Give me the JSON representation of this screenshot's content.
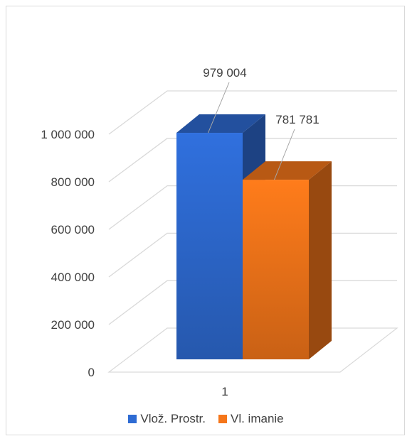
{
  "chart_data": {
    "type": "bar",
    "style": "3d-clustered-column",
    "categories": [
      "1"
    ],
    "series": [
      {
        "name": "Vlož. Prostr.",
        "values": [
          979004
        ],
        "label": "979 004",
        "color": "#2E6BD3"
      },
      {
        "name": "Vl. imanie",
        "values": [
          781781
        ],
        "label": "781 781",
        "color": "#F5761A"
      }
    ],
    "ylim": [
      0,
      1000000
    ],
    "yticks": [
      0,
      200000,
      400000,
      600000,
      800000,
      1000000
    ],
    "ytick_labels": [
      "0",
      "200 000",
      "400 000",
      "600 000",
      "800 000",
      "1 000 000"
    ],
    "grid": true,
    "legend_position": "bottom"
  }
}
